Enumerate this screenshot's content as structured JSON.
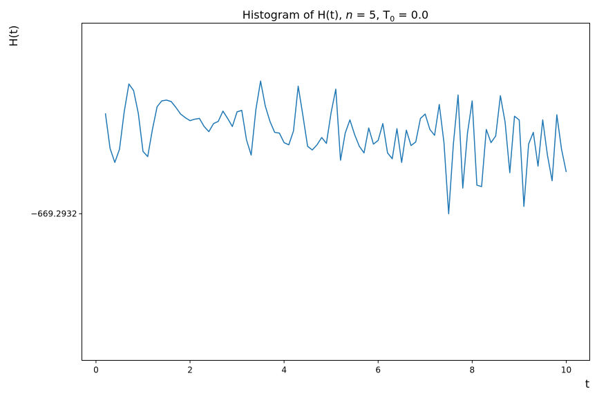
{
  "chart_data": {
    "type": "line",
    "title": "Histogram of H(t), n = 5, T₀ = 0.0",
    "title_parts": {
      "prefix": "Histogram of H(t), ",
      "italic_var": "n",
      "middle": " = 5, T",
      "subscript": "0",
      "suffix": " = 0.0"
    },
    "xlabel": "t",
    "ylabel": "H(t)",
    "xlim": [
      -0.3,
      10.5
    ],
    "xticks": [
      0,
      2,
      4,
      6,
      8,
      10
    ],
    "xtick_labels": [
      "0",
      "2",
      "4",
      "6",
      "8",
      "10"
    ],
    "ylim": [
      -669.2934,
      -669.29294
    ],
    "yticks": [
      -669.2932
    ],
    "ytick_labels": [
      "−669.2932"
    ],
    "grid": false,
    "colors": {
      "line": "#1f77b4"
    },
    "series": [
      {
        "x": [
          0.2,
          0.3,
          0.4,
          0.5,
          0.6,
          0.7,
          0.8,
          0.9,
          1.0,
          1.1,
          1.2,
          1.3,
          1.4,
          1.5,
          1.6,
          1.7,
          1.8,
          1.9,
          2.0,
          2.1,
          2.2,
          2.3,
          2.4,
          2.5,
          2.6,
          2.7,
          2.8,
          2.9,
          3.0,
          3.1,
          3.2,
          3.3,
          3.4,
          3.5,
          3.6,
          3.7,
          3.8,
          3.9,
          4.0,
          4.1,
          4.2,
          4.3,
          4.4,
          4.5,
          4.6,
          4.7,
          4.8,
          4.9,
          5.0,
          5.1,
          5.2,
          5.3,
          5.4,
          5.5,
          5.6,
          5.7,
          5.8,
          5.9,
          6.0,
          6.1,
          6.2,
          6.3,
          6.4,
          6.5,
          6.6,
          6.7,
          6.8,
          6.9,
          7.0,
          7.1,
          7.2,
          7.3,
          7.4,
          7.5,
          7.6,
          7.7,
          7.8,
          7.9,
          8.0,
          8.1,
          8.2,
          8.3,
          8.4,
          8.5,
          8.6,
          8.7,
          8.8,
          8.9,
          9.0,
          9.1,
          9.2,
          9.3,
          9.4,
          9.5,
          9.6,
          9.7,
          9.8,
          9.9,
          10.0
        ],
        "values": [
          -669.293063,
          -669.293111,
          -669.29313,
          -669.293112,
          -669.293061,
          -669.293023,
          -669.293032,
          -669.293063,
          -669.293115,
          -669.293122,
          -669.293085,
          -669.293054,
          -669.293046,
          -669.293045,
          -669.293047,
          -669.293055,
          -669.293064,
          -669.293069,
          -669.293073,
          -669.293071,
          -669.29307,
          -669.293081,
          -669.293088,
          -669.293077,
          -669.293074,
          -669.29306,
          -669.29307,
          -669.293081,
          -669.293061,
          -669.293059,
          -669.293099,
          -669.29312,
          -669.293058,
          -669.293019,
          -669.293053,
          -669.293074,
          -669.293089,
          -669.29309,
          -669.293103,
          -669.293106,
          -669.293087,
          -669.293026,
          -669.293066,
          -669.293108,
          -669.293113,
          -669.293106,
          -669.293096,
          -669.293104,
          -669.293062,
          -669.29303,
          -669.293127,
          -669.29309,
          -669.293072,
          -669.293092,
          -669.293108,
          -669.293117,
          -669.293083,
          -669.293105,
          -669.2931,
          -669.293077,
          -669.293117,
          -669.293125,
          -669.293084,
          -669.29313,
          -669.293086,
          -669.293107,
          -669.293102,
          -669.29307,
          -669.293064,
          -669.293085,
          -669.293093,
          -669.293051,
          -669.293103,
          -669.2932,
          -669.293105,
          -669.293038,
          -669.293165,
          -669.29309,
          -669.293046,
          -669.293161,
          -669.293163,
          -669.293085,
          -669.293103,
          -669.293094,
          -669.293039,
          -669.293075,
          -669.293144,
          -669.293067,
          -669.293072,
          -669.29319,
          -669.293105,
          -669.293089,
          -669.293135,
          -669.293072,
          -669.29312,
          -669.293155,
          -669.293065,
          -669.293112,
          -669.293143
        ]
      }
    ]
  }
}
